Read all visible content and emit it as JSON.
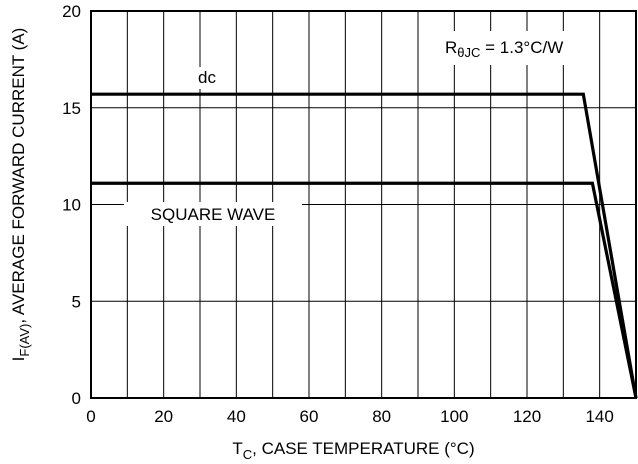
{
  "chart_data": {
    "type": "line",
    "xlabel": "T",
    "xlabel_sub": "C",
    "xlabel_rest": ", CASE TEMPERATURE (°C)",
    "ylabel": "I",
    "ylabel_sub": "F(AV)",
    "ylabel_rest": ", AVERAGE FORWARD CURRENT (A)",
    "xlim": [
      0,
      150
    ],
    "ylim": [
      0,
      20
    ],
    "x_ticks": [
      0,
      20,
      40,
      60,
      80,
      100,
      120,
      140
    ],
    "y_ticks": [
      0,
      5,
      10,
      15,
      20
    ],
    "x_grid_step": 10,
    "y_grid_step": 5,
    "grid": true,
    "series": [
      {
        "name": "dc",
        "x": [
          0,
          135.5,
          150
        ],
        "y": [
          15.7,
          15.7,
          0
        ]
      },
      {
        "name": "SQUARE WAVE",
        "x": [
          0,
          138,
          150
        ],
        "y": [
          11.1,
          11.1,
          0
        ]
      }
    ],
    "annotation": {
      "prefix": "R",
      "sub": "θJC",
      "rest": " = 1.3°C/W"
    }
  }
}
